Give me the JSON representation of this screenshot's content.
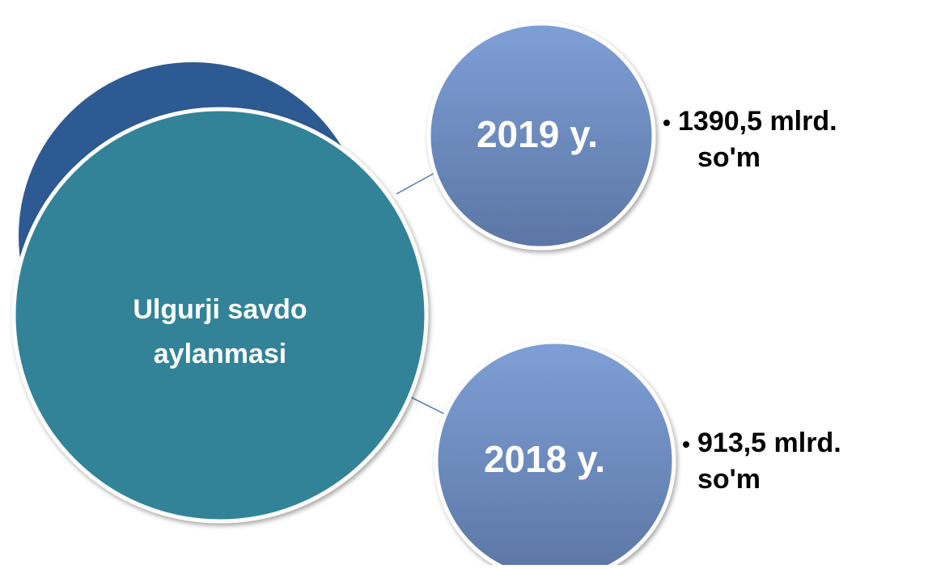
{
  "center": {
    "lines": [
      "Ulgurji savdo",
      "aylanmasi"
    ]
  },
  "items": [
    {
      "year": "2019 y.",
      "lines": [
        "1390,5 mlrd.",
        "so'm"
      ]
    },
    {
      "year": "2018 y.",
      "lines": [
        "913,5 mlrd.",
        "so'm"
      ]
    }
  ]
}
